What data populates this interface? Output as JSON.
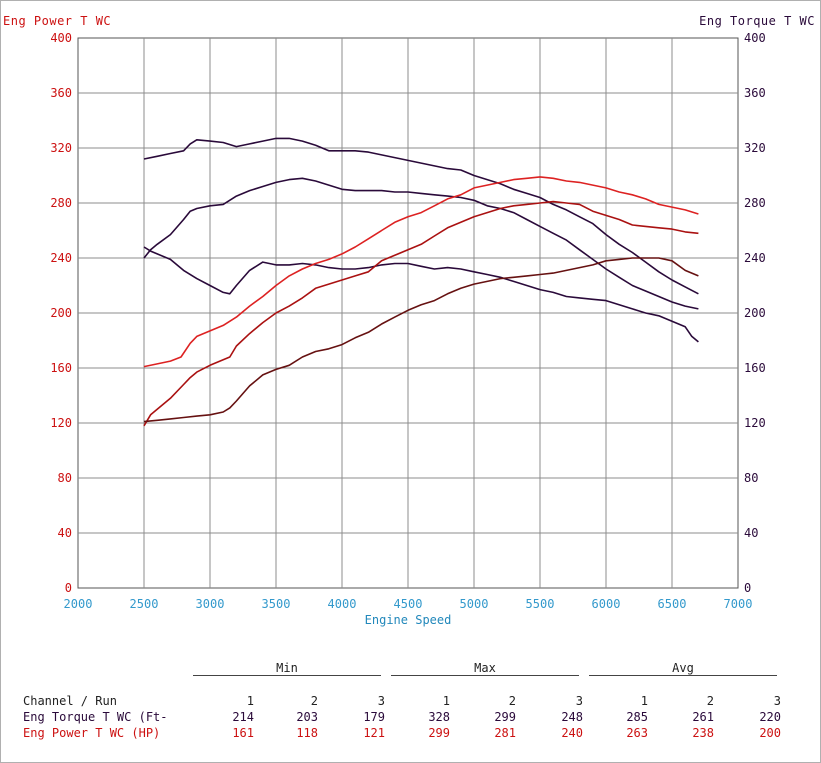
{
  "header": {
    "left_title": "Eng Power T WC",
    "right_title": "Eng Torque T WC"
  },
  "chart_data": {
    "type": "line",
    "xlabel": "Engine Speed",
    "xlim": [
      2000,
      7000
    ],
    "ylim": [
      0,
      400
    ],
    "x_ticks": [
      "2000",
      "2500",
      "3000",
      "3500",
      "4000",
      "4500",
      "5000",
      "5500",
      "6000",
      "6500",
      "7000"
    ],
    "y_ticks": [
      "0",
      "40",
      "80",
      "120",
      "160",
      "200",
      "240",
      "280",
      "320",
      "360",
      "400"
    ],
    "grid": true,
    "series": [
      {
        "name": "Eng Torque T WC (Ft- 1",
        "axis": "right",
        "color": "#2a0a3a",
        "x": [
          2500,
          2600,
          2700,
          2800,
          2850,
          2900,
          3000,
          3100,
          3200,
          3300,
          3400,
          3500,
          3600,
          3700,
          3800,
          3900,
          4000,
          4100,
          4200,
          4300,
          4400,
          4500,
          4600,
          4700,
          4800,
          4900,
          5000,
          5100,
          5200,
          5300,
          5400,
          5500,
          5600,
          5700,
          5800,
          5900,
          6000,
          6100,
          6200,
          6300,
          6400,
          6500,
          6600,
          6700
        ],
        "y": [
          312,
          314,
          316,
          318,
          323,
          326,
          325,
          324,
          321,
          323,
          325,
          327,
          327,
          325,
          322,
          318,
          318,
          318,
          317,
          315,
          313,
          311,
          309,
          307,
          305,
          304,
          300,
          297,
          294,
          290,
          287,
          284,
          279,
          275,
          270,
          265,
          257,
          250,
          244,
          237,
          230,
          224,
          219,
          214
        ]
      },
      {
        "name": "Eng Torque T WC (Ft- 2",
        "axis": "right",
        "color": "#2a0a3a",
        "x": [
          2500,
          2550,
          2600,
          2700,
          2800,
          2850,
          2900,
          3000,
          3100,
          3200,
          3300,
          3400,
          3500,
          3600,
          3700,
          3800,
          3900,
          4000,
          4100,
          4200,
          4300,
          4400,
          4500,
          4600,
          4700,
          4800,
          4900,
          5000,
          5100,
          5200,
          5300,
          5400,
          5500,
          5600,
          5700,
          5800,
          5900,
          6000,
          6100,
          6200,
          6300,
          6400,
          6500,
          6600,
          6700
        ],
        "y": [
          240,
          246,
          250,
          257,
          268,
          274,
          276,
          278,
          279,
          285,
          289,
          292,
          295,
          297,
          298,
          296,
          293,
          290,
          289,
          289,
          289,
          288,
          288,
          287,
          286,
          285,
          284,
          282,
          278,
          276,
          273,
          268,
          263,
          258,
          253,
          246,
          239,
          232,
          226,
          220,
          216,
          212,
          208,
          205,
          203
        ]
      },
      {
        "name": "Eng Torque T WC (Ft- 3",
        "axis": "right",
        "color": "#2a0a3a",
        "x": [
          2500,
          2550,
          2600,
          2700,
          2800,
          2900,
          3000,
          3100,
          3150,
          3200,
          3300,
          3400,
          3500,
          3600,
          3700,
          3800,
          3900,
          4000,
          4100,
          4200,
          4300,
          4400,
          4500,
          4600,
          4700,
          4800,
          4900,
          5000,
          5100,
          5200,
          5300,
          5400,
          5500,
          5600,
          5700,
          5800,
          5900,
          6000,
          6100,
          6200,
          6300,
          6400,
          6500,
          6600,
          6650,
          6700
        ],
        "y": [
          248,
          245,
          243,
          239,
          231,
          225,
          220,
          215,
          214,
          220,
          231,
          237,
          235,
          235,
          236,
          235,
          233,
          232,
          232,
          233,
          235,
          236,
          236,
          234,
          232,
          233,
          232,
          230,
          228,
          226,
          223,
          220,
          217,
          215,
          212,
          211,
          210,
          209,
          206,
          203,
          200,
          198,
          194,
          190,
          183,
          179
        ]
      },
      {
        "name": "Eng Power T WC (HP) 1",
        "axis": "left",
        "color": "#dd2222",
        "x": [
          2500,
          2600,
          2700,
          2780,
          2850,
          2900,
          3000,
          3100,
          3200,
          3300,
          3400,
          3500,
          3600,
          3700,
          3800,
          3900,
          4000,
          4100,
          4200,
          4300,
          4400,
          4500,
          4600,
          4700,
          4800,
          4900,
          5000,
          5100,
          5200,
          5300,
          5400,
          5500,
          5600,
          5700,
          5800,
          5900,
          6000,
          6100,
          6200,
          6300,
          6400,
          6500,
          6600,
          6700
        ],
        "y": [
          161,
          163,
          165,
          168,
          178,
          183,
          187,
          191,
          197,
          205,
          212,
          220,
          227,
          232,
          236,
          239,
          243,
          248,
          254,
          260,
          266,
          270,
          273,
          278,
          283,
          286,
          291,
          293,
          295,
          297,
          298,
          299,
          298,
          296,
          295,
          293,
          291,
          288,
          286,
          283,
          279,
          277,
          275,
          272
        ]
      },
      {
        "name": "Eng Power T WC (HP) 2",
        "axis": "left",
        "color": "#aa1111",
        "x": [
          2500,
          2550,
          2600,
          2700,
          2800,
          2850,
          2900,
          3000,
          3100,
          3150,
          3200,
          3300,
          3400,
          3500,
          3600,
          3700,
          3800,
          3900,
          4000,
          4100,
          4200,
          4300,
          4400,
          4500,
          4600,
          4700,
          4800,
          4900,
          5000,
          5100,
          5200,
          5300,
          5400,
          5500,
          5600,
          5700,
          5800,
          5900,
          6000,
          6100,
          6200,
          6300,
          6400,
          6500,
          6600,
          6700
        ],
        "y": [
          118,
          126,
          130,
          138,
          148,
          153,
          157,
          162,
          166,
          168,
          176,
          185,
          193,
          200,
          205,
          211,
          218,
          221,
          224,
          227,
          230,
          238,
          242,
          246,
          250,
          256,
          262,
          266,
          270,
          273,
          276,
          278,
          279,
          280,
          281,
          280,
          279,
          274,
          271,
          268,
          264,
          263,
          262,
          261,
          259,
          258
        ]
      },
      {
        "name": "Eng Power T WC (HP) 3",
        "axis": "left",
        "color": "#661111",
        "x": [
          2500,
          2600,
          2700,
          2800,
          2900,
          3000,
          3100,
          3150,
          3200,
          3300,
          3400,
          3500,
          3600,
          3700,
          3800,
          3900,
          4000,
          4100,
          4200,
          4300,
          4400,
          4500,
          4600,
          4700,
          4800,
          4900,
          5000,
          5100,
          5200,
          5300,
          5400,
          5500,
          5600,
          5700,
          5800,
          5900,
          6000,
          6100,
          6200,
          6300,
          6400,
          6500,
          6600,
          6700
        ],
        "y": [
          121,
          122,
          123,
          124,
          125,
          126,
          128,
          131,
          136,
          147,
          155,
          159,
          162,
          168,
          172,
          174,
          177,
          182,
          186,
          192,
          197,
          202,
          206,
          209,
          214,
          218,
          221,
          223,
          225,
          226,
          227,
          228,
          229,
          231,
          233,
          235,
          238,
          239,
          240,
          240,
          240,
          238,
          231,
          227
        ]
      }
    ]
  },
  "stats": {
    "group_headers": [
      "Min",
      "Max",
      "Avg"
    ],
    "row_head_label": "Channel / Run",
    "run_numbers": [
      "1",
      "2",
      "3",
      "1",
      "2",
      "3",
      "1",
      "2",
      "3"
    ],
    "rows": [
      {
        "label": "Eng Torque T WC (Ft-",
        "values": [
          "214",
          "203",
          "179",
          "328",
          "299",
          "248",
          "285",
          "261",
          "220"
        ]
      },
      {
        "label": "Eng Power T WC (HP)",
        "values": [
          "161",
          "118",
          "121",
          "299",
          "281",
          "240",
          "263",
          "238",
          "200"
        ]
      }
    ]
  }
}
